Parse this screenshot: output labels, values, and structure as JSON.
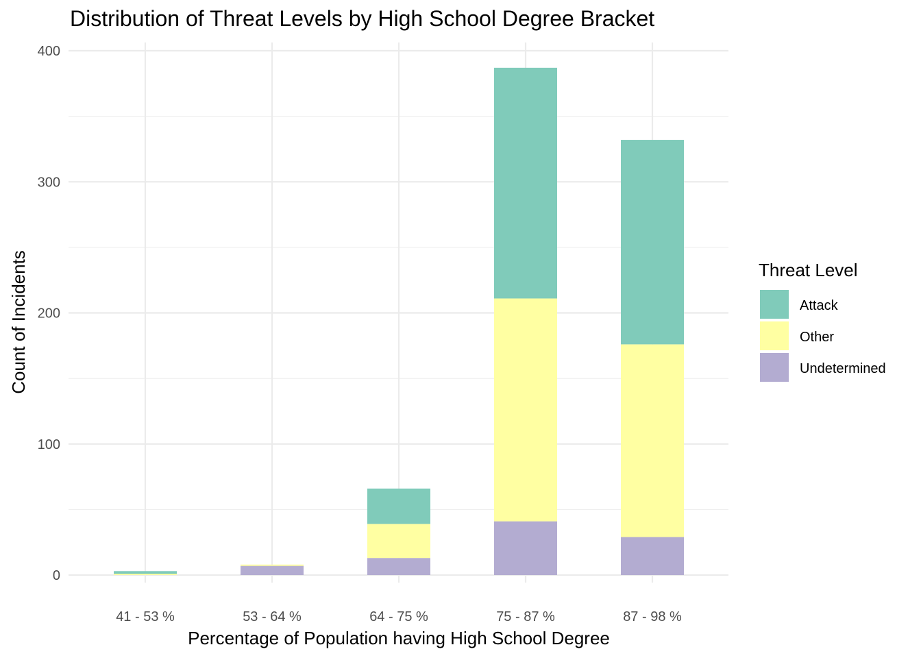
{
  "chart_data": {
    "type": "bar",
    "stacked": true,
    "title": "Distribution of Threat Levels by High School Degree Bracket",
    "xlabel": "Percentage of Population having High School Degree",
    "ylabel": "Count of Incidents",
    "categories": [
      "41 - 53 %",
      "53 - 64 %",
      "64 - 75 %",
      "75 - 87 %",
      "87 - 98 %"
    ],
    "series": [
      {
        "name": "Undetermined",
        "color": "#b3acd1",
        "values": [
          0,
          7,
          13,
          41,
          29
        ]
      },
      {
        "name": "Other",
        "color": "#ffffa2",
        "values": [
          1,
          1,
          26,
          170,
          147
        ]
      },
      {
        "name": "Attack",
        "color": "#80cbba",
        "values": [
          2,
          0,
          27,
          176,
          156
        ]
      }
    ],
    "ylim": [
      0,
      400
    ],
    "yticks": [
      0,
      100,
      200,
      300,
      400
    ],
    "grid": true,
    "legend": {
      "title": "Threat Level",
      "placement": "right",
      "order": [
        "Attack",
        "Other",
        "Undetermined"
      ]
    }
  }
}
